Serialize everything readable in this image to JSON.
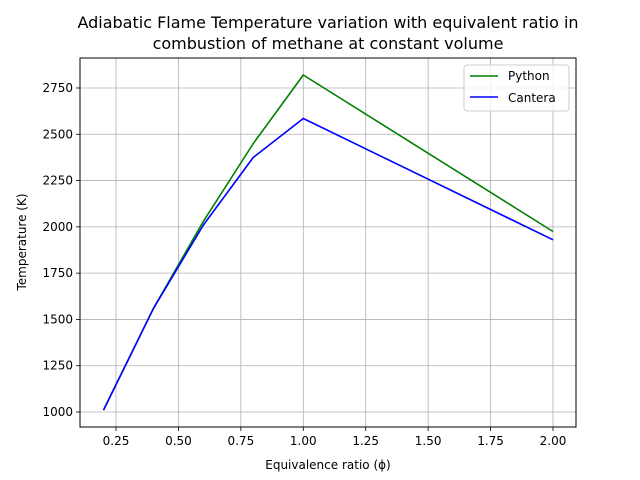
{
  "chart_data": {
    "type": "line",
    "title": "Adiabatic Flame Temperature variation with equivalent ratio in combustion of methane at constant volume",
    "title_lines": [
      "Adiabatic Flame Temperature variation with equivalent ratio in",
      "combustion of methane at constant volume"
    ],
    "xlabel": "Equivalence ratio (ϕ)",
    "ylabel": "Temperature (K)",
    "xlim": [
      0.11,
      2.09
    ],
    "ylim": [
      925,
      2900
    ],
    "xticks": [
      0.25,
      0.5,
      0.75,
      1.0,
      1.25,
      1.5,
      1.75,
      2.0
    ],
    "xtick_labels": [
      "0.25",
      "0.50",
      "0.75",
      "1.00",
      "1.25",
      "1.50",
      "1.75",
      "2.00"
    ],
    "yticks": [
      1000,
      1250,
      1500,
      1750,
      2000,
      2250,
      2500,
      2750
    ],
    "ytick_labels": [
      "1000",
      "1250",
      "1500",
      "1750",
      "2000",
      "2250",
      "2500",
      "2750"
    ],
    "grid": true,
    "legend_position": "upper right",
    "x": [
      0.2,
      0.4,
      0.6,
      0.8,
      1.0,
      2.0
    ],
    "series": [
      {
        "name": "Python",
        "color": "#008000",
        "values": [
          1010,
          1560,
          2030,
          2450,
          2820,
          1975
        ]
      },
      {
        "name": "Cantera",
        "color": "#0000ff",
        "values": [
          1010,
          1560,
          2010,
          2375,
          2585,
          1930
        ]
      }
    ]
  }
}
